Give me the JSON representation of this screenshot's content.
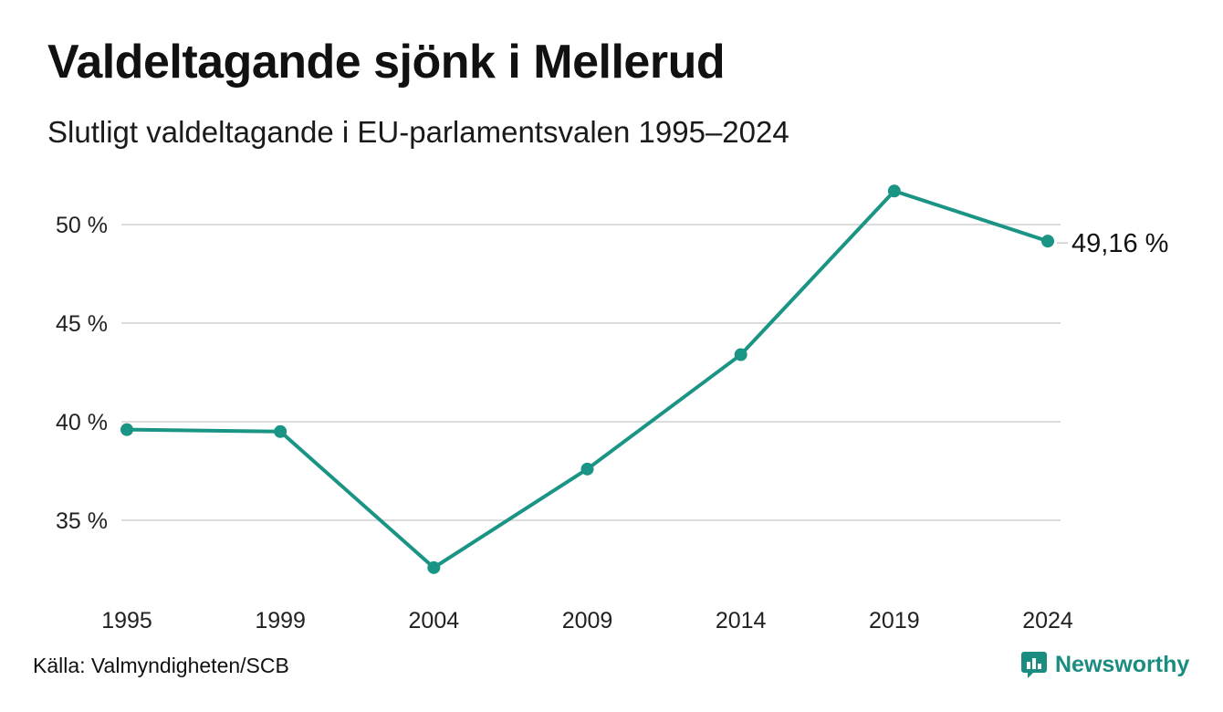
{
  "header": {
    "title": "Valdeltagande sjönk i Mellerud",
    "subtitle": "Slutligt valdeltagande i EU-parlamentsvalen 1995–2024"
  },
  "footer": {
    "source": "Källa: Valmyndigheten/SCB",
    "brand": "Newsworthy",
    "brand_icon": "newsworthy-logo-icon"
  },
  "colors": {
    "line": "#1a9485",
    "grid": "#dcdcdc",
    "brand": "#1a8c80"
  },
  "chart_data": {
    "type": "line",
    "title": "Valdeltagande sjönk i Mellerud",
    "subtitle": "Slutligt valdeltagande i EU-parlamentsvalen 1995–2024",
    "xlabel": "",
    "ylabel": "",
    "categories": [
      "1995",
      "1999",
      "2004",
      "2009",
      "2014",
      "2019",
      "2024"
    ],
    "series": [
      {
        "values": [
          39.6,
          39.5,
          32.6,
          37.6,
          43.4,
          51.7,
          49.16
        ]
      }
    ],
    "ylim": [
      31,
      53
    ],
    "yticks": [
      35,
      40,
      45,
      50
    ],
    "ytick_labels": [
      "35 %",
      "40 %",
      "45 %",
      "50 %"
    ],
    "end_label": "49,16 %",
    "grid": true,
    "legend": "none"
  }
}
